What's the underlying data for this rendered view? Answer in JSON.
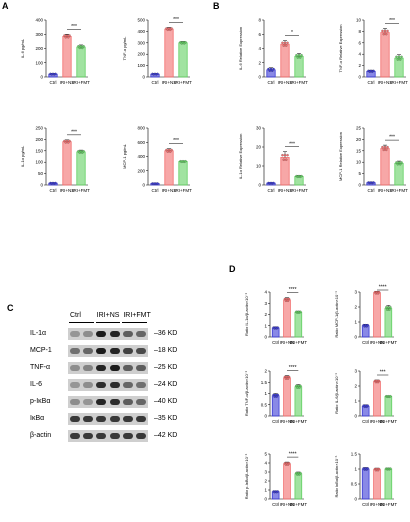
{
  "panel_labels": {
    "a": "A",
    "b": "B",
    "c": "C",
    "d": "D"
  },
  "colors": {
    "Ctrl": "#3b3bd6",
    "IRI+NS": "#f26d6d",
    "IRI+FMT": "#62d062",
    "axis": "#000000"
  },
  "chart_data": [
    {
      "id": "A1",
      "type": "bar",
      "categories": [
        "Ctrl",
        "IRI+NS",
        "IRI+FMT"
      ],
      "values": [
        20,
        285,
        210
      ],
      "errors": [
        5,
        15,
        15
      ],
      "ylabel": "IL-6 pg/mL",
      "yticks": [
        0,
        100,
        200,
        300,
        400
      ],
      "ylim": [
        0,
        400
      ],
      "sig": [
        {
          "a": 1,
          "b": 2,
          "text": "***"
        }
      ]
    },
    {
      "id": "A2",
      "type": "bar",
      "categories": [
        "Ctrl",
        "IRI+NS",
        "IRI+FMT"
      ],
      "values": [
        25,
        420,
        300
      ],
      "errors": [
        6,
        15,
        12
      ],
      "ylabel": "TNF-α pg/mL",
      "yticks": [
        0,
        100,
        200,
        300,
        400,
        500
      ],
      "ylim": [
        0,
        500
      ],
      "sig": [
        {
          "a": 1,
          "b": 2,
          "text": "***"
        }
      ]
    },
    {
      "id": "A3",
      "type": "bar",
      "categories": [
        "Ctrl",
        "IRI+NS",
        "IRI+FMT"
      ],
      "values": [
        8,
        190,
        145
      ],
      "errors": [
        2,
        8,
        8
      ],
      "ylabel": "IL-1α pg/mL",
      "yticks": [
        0,
        50,
        100,
        150,
        200,
        250
      ],
      "ylim": [
        0,
        250
      ],
      "sig": [
        {
          "a": 1,
          "b": 2,
          "text": "***"
        }
      ]
    },
    {
      "id": "A4",
      "type": "bar",
      "categories": [
        "Ctrl",
        "IRI+NS",
        "IRI+FMT"
      ],
      "values": [
        20,
        480,
        330
      ],
      "errors": [
        5,
        30,
        10
      ],
      "ylabel": "MCP-1 pg/mL",
      "yticks": [
        0,
        200,
        400,
        600,
        800
      ],
      "ylim": [
        0,
        800
      ],
      "sig": [
        {
          "a": 1,
          "b": 2,
          "text": "***"
        }
      ]
    },
    {
      "id": "B1",
      "type": "bar",
      "categories": [
        "Ctrl",
        "IRI+NS",
        "IRI+FMT"
      ],
      "values": [
        1.0,
        4.6,
        2.9
      ],
      "errors": [
        0.3,
        0.5,
        0.4
      ],
      "ylabel": "IL-6 Relative Expression",
      "yticks": [
        0,
        2,
        4,
        6,
        8
      ],
      "ylim": [
        0,
        8
      ],
      "sig": [
        {
          "a": 1,
          "b": 2,
          "text": "*"
        }
      ]
    },
    {
      "id": "B2",
      "type": "bar",
      "categories": [
        "Ctrl",
        "IRI+NS",
        "IRI+FMT"
      ],
      "values": [
        1.0,
        7.8,
        3.3
      ],
      "errors": [
        0.2,
        0.7,
        0.6
      ],
      "ylabel": "TNF-α Relative Expression",
      "yticks": [
        0,
        2,
        4,
        6,
        8,
        10
      ],
      "ylim": [
        0,
        10
      ],
      "sig": [
        {
          "a": 1,
          "b": 2,
          "text": "***"
        }
      ]
    },
    {
      "id": "B3",
      "type": "bar",
      "categories": [
        "Ctrl",
        "IRI+NS",
        "IRI+FMT"
      ],
      "values": [
        1.0,
        14.5,
        4.5
      ],
      "errors": [
        0.2,
        3.0,
        0.5
      ],
      "ylabel": "IL-1α Relative Expression",
      "yticks": [
        0,
        10,
        20,
        30
      ],
      "ylim": [
        0,
        30
      ],
      "sig": [
        {
          "a": 1,
          "b": 2,
          "text": "***"
        }
      ]
    },
    {
      "id": "B4",
      "type": "bar",
      "categories": [
        "Ctrl",
        "IRI+NS",
        "IRI+FMT"
      ],
      "values": [
        1.0,
        16.0,
        9.5
      ],
      "errors": [
        0.3,
        1.5,
        1.0
      ],
      "ylabel": "MCP-1 Relative Expression",
      "yticks": [
        0,
        5,
        10,
        15,
        20,
        25
      ],
      "ylim": [
        0,
        25
      ],
      "sig": [
        {
          "a": 1,
          "b": 2,
          "text": "***"
        }
      ]
    },
    {
      "id": "D1",
      "type": "bar",
      "categories": [
        "Ctrl",
        "IRI+NS",
        "IRI+FMT"
      ],
      "values": [
        0.8,
        3.3,
        2.2
      ],
      "errors": [
        0.1,
        0.2,
        0.1
      ],
      "ylabel": "Ratio IL-1α/β-actin×10⁻¹",
      "yticks": [
        0,
        1,
        2,
        3,
        4
      ],
      "ylim": [
        0,
        4
      ],
      "sig": [
        {
          "a": 1,
          "b": 2,
          "text": "****"
        }
      ]
    },
    {
      "id": "D2",
      "type": "bar",
      "categories": [
        "Ctrl",
        "IRI+NS",
        "IRI+FMT"
      ],
      "values": [
        0.75,
        2.95,
        1.9
      ],
      "errors": [
        0.1,
        0.1,
        0.2
      ],
      "ylabel": "Ratio MCP-1/β-actin×10⁻¹",
      "yticks": [
        0,
        1,
        2,
        3
      ],
      "ylim": [
        0,
        3
      ],
      "sig": [
        {
          "a": 1,
          "b": 2,
          "text": "****"
        }
      ]
    },
    {
      "id": "D3",
      "type": "bar",
      "categories": [
        "Ctrl",
        "IRI+NS",
        "IRI+FMT"
      ],
      "values": [
        0.9,
        1.7,
        1.3
      ],
      "errors": [
        0.1,
        0.1,
        0.1
      ],
      "ylabel": "Ratio TNF-α/β-actin×10⁻¹",
      "yticks": [
        0,
        0.5,
        1.0,
        1.5,
        2.0
      ],
      "ylim": [
        0,
        2
      ],
      "sig": [
        {
          "a": 1,
          "b": 2,
          "text": "****"
        }
      ]
    },
    {
      "id": "D4",
      "type": "bar",
      "categories": [
        "Ctrl",
        "IRI+NS",
        "IRI+FMT"
      ],
      "values": [
        0.65,
        2.3,
        1.3
      ],
      "errors": [
        0.1,
        0.1,
        0.05
      ],
      "ylabel": "Ratio IL-6/β-actin×10⁻¹",
      "yticks": [
        0,
        1,
        2,
        3
      ],
      "ylim": [
        0,
        3
      ],
      "sig": [
        {
          "a": 1,
          "b": 2,
          "text": "***"
        }
      ]
    },
    {
      "id": "D5",
      "type": "bar",
      "categories": [
        "Ctrl",
        "IRI+NS",
        "IRI+FMT"
      ],
      "values": [
        0.8,
        3.9,
        2.8
      ],
      "errors": [
        0.1,
        0.2,
        0.2
      ],
      "ylabel": "Ratio p-IκBα/β-actin×10⁻¹",
      "yticks": [
        0,
        1,
        2,
        3,
        4,
        5
      ],
      "ylim": [
        0,
        5
      ],
      "sig": [
        {
          "a": 1,
          "b": 2,
          "text": "****"
        }
      ]
    },
    {
      "id": "D6",
      "type": "bar",
      "categories": [
        "Ctrl",
        "IRI+NS",
        "IRI+FMT"
      ],
      "values": [
        1.0,
        0.98,
        1.0
      ],
      "errors": [
        0.05,
        0.05,
        0.03
      ],
      "ylabel": "Ratio IκBα/β-actin×10⁻¹",
      "yticks": [
        0,
        0.5,
        1.0,
        1.5
      ],
      "ylim": [
        0,
        1.5
      ],
      "sig": []
    }
  ],
  "western_blot": {
    "columns": [
      "Ctrl",
      "IRI+NS",
      "IRI+FMT"
    ],
    "rows": [
      {
        "protein": "IL-1α",
        "size": "36 KD"
      },
      {
        "protein": "MCP-1",
        "size": "18 KD"
      },
      {
        "protein": "TNF-α",
        "size": "25 KD"
      },
      {
        "protein": "IL-6",
        "size": "24 KD"
      },
      {
        "protein": "p-IκBα",
        "size": "40 KD"
      },
      {
        "protein": "IκBα",
        "size": "35 KD"
      },
      {
        "protein": "β-actin",
        "size": "42 KD"
      }
    ]
  }
}
